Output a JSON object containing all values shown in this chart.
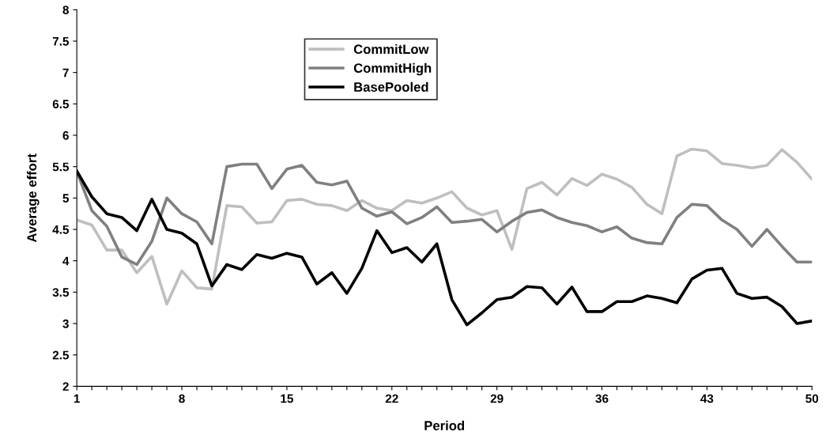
{
  "chart_data": {
    "type": "line",
    "xlabel": "Period",
    "ylabel": "Average effort",
    "categories": [
      "1",
      null,
      null,
      null,
      null,
      null,
      null,
      "8",
      null,
      null,
      null,
      null,
      null,
      null,
      "15",
      null,
      null,
      null,
      null,
      null,
      null,
      "22",
      null,
      null,
      null,
      null,
      null,
      null,
      "29",
      null,
      null,
      null,
      null,
      null,
      null,
      "36",
      null,
      null,
      null,
      null,
      null,
      null,
      "43",
      null,
      null,
      null,
      null,
      null,
      null,
      "50"
    ],
    "ylim": [
      2,
      8
    ],
    "yticks": [
      2,
      2.5,
      3,
      3.5,
      4,
      4.5,
      5,
      5.5,
      6,
      6.5,
      7,
      7.5,
      8
    ],
    "grid": false,
    "legend": "top",
    "marker": "none",
    "line_style": "solid",
    "series": [
      {
        "name": "CommitLow",
        "color": "#bfbfbf",
        "values": [
          4.65,
          4.57,
          4.17,
          4.17,
          3.81,
          4.07,
          3.31,
          3.84,
          3.57,
          3.55,
          4.88,
          4.86,
          4.6,
          4.62,
          4.96,
          4.98,
          4.9,
          4.88,
          4.8,
          4.96,
          4.84,
          4.8,
          4.96,
          4.92,
          5.0,
          5.1,
          4.84,
          4.73,
          4.8,
          4.18,
          5.15,
          5.25,
          5.05,
          5.31,
          5.2,
          5.38,
          5.3,
          5.17,
          4.9,
          4.75,
          5.67,
          5.78,
          5.75,
          5.55,
          5.52,
          5.48,
          5.52,
          5.77,
          5.57,
          5.3
        ]
      },
      {
        "name": "CommitHigh",
        "color": "#808080",
        "values": [
          5.42,
          4.8,
          4.55,
          4.06,
          3.94,
          4.31,
          5.0,
          4.75,
          4.62,
          4.27,
          5.5,
          5.54,
          5.54,
          5.15,
          5.46,
          5.52,
          5.25,
          5.21,
          5.27,
          4.84,
          4.71,
          4.78,
          4.59,
          4.69,
          4.86,
          4.61,
          4.63,
          4.66,
          4.46,
          4.63,
          4.77,
          4.81,
          4.69,
          4.61,
          4.56,
          4.46,
          4.54,
          4.36,
          4.29,
          4.27,
          4.69,
          4.9,
          4.88,
          4.65,
          4.5,
          4.23,
          4.5,
          4.23,
          3.98,
          3.98
        ]
      },
      {
        "name": "BasePooled",
        "color": "#000000",
        "values": [
          5.43,
          5.02,
          4.75,
          4.69,
          4.48,
          4.98,
          4.5,
          4.44,
          4.27,
          3.6,
          3.94,
          3.86,
          4.1,
          4.04,
          4.12,
          4.06,
          3.63,
          3.81,
          3.48,
          3.88,
          4.48,
          4.13,
          4.21,
          3.98,
          4.27,
          3.38,
          2.98,
          3.17,
          3.38,
          3.42,
          3.59,
          3.57,
          3.31,
          3.58,
          3.19,
          3.19,
          3.35,
          3.35,
          3.44,
          3.4,
          3.33,
          3.71,
          3.85,
          3.88,
          3.48,
          3.4,
          3.42,
          3.27,
          3.0,
          3.04
        ]
      }
    ]
  }
}
